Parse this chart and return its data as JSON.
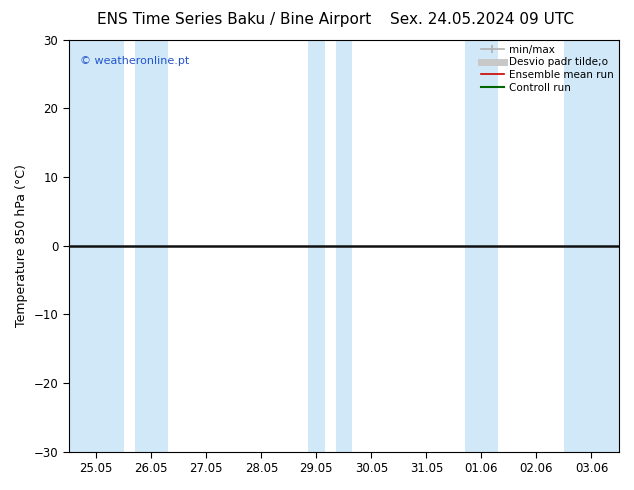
{
  "title_left": "ENS Time Series Baku / Bine Airport",
  "title_right": "Sex. 24.05.2024 09 UTC",
  "ylabel": "Temperature 850 hPa (°C)",
  "ylim": [
    -30,
    30
  ],
  "yticks": [
    -30,
    -20,
    -10,
    0,
    10,
    20,
    30
  ],
  "x_labels": [
    "25.05",
    "26.05",
    "27.05",
    "28.05",
    "29.05",
    "30.05",
    "31.05",
    "01.06",
    "02.06",
    "03.06"
  ],
  "watermark": "© weatheronline.pt",
  "legend_entries": [
    {
      "label": "min/max",
      "color": "#b0b0b0",
      "lw": 1.2
    },
    {
      "label": "Desvio padr tilde;o",
      "color": "#c8c8c8",
      "lw": 5
    },
    {
      "label": "Ensemble mean run",
      "color": "#cc0000",
      "lw": 1.2
    },
    {
      "label": "Controll run",
      "color": "#006600",
      "lw": 1.5
    }
  ],
  "shaded_bands_x": [
    0.0,
    1.0,
    4.0,
    4.5,
    7.0,
    9.5
  ],
  "shaded_bands_widths": [
    0.6,
    0.6,
    0.3,
    0.3,
    0.3,
    0.5
  ],
  "band_color": "#d0e8f8",
  "zero_line_color": "#111111",
  "zero_line_lw": 1.8,
  "background_color": "white",
  "title_fontsize": 11,
  "axis_fontsize": 9,
  "tick_fontsize": 8.5,
  "watermark_color": "#2255cc",
  "watermark_fontsize": 8
}
